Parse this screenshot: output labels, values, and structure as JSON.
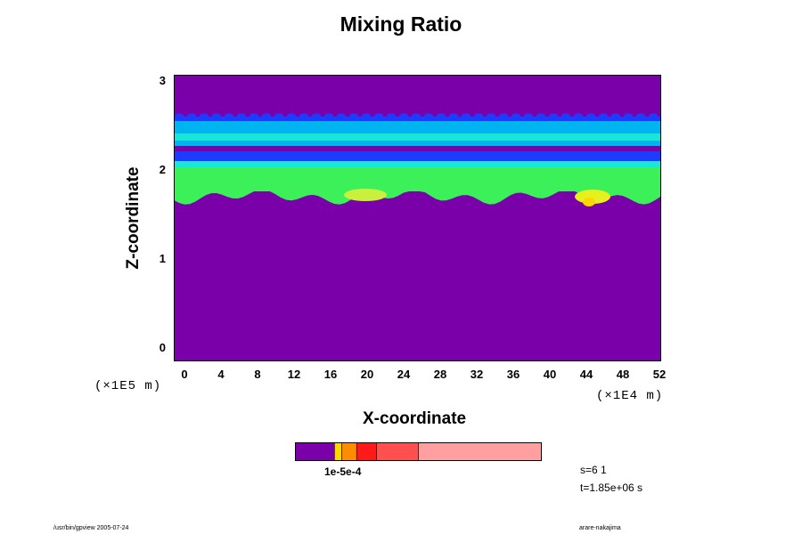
{
  "chart_data": {
    "type": "heatmap",
    "title": "Mixing Ratio",
    "xlabel": "X-coordinate",
    "ylabel": "Z-coordinate",
    "x_unit": "(×1E4 m)",
    "y_unit": "(×1E5 m)",
    "xlim": [
      0,
      52
    ],
    "ylim": [
      0,
      3
    ],
    "x_ticks": [
      "0",
      "4",
      "8",
      "12",
      "16",
      "20",
      "24",
      "28",
      "32",
      "36",
      "40",
      "44",
      "48",
      "52"
    ],
    "y_ticks": [
      "0",
      "1",
      "2",
      "3"
    ],
    "background_color": "#7a00aa",
    "bands": [
      {
        "z0": 2.56,
        "z1": 2.63,
        "color": "#1e3cff"
      },
      {
        "z0": 2.3,
        "z1": 2.58,
        "color": "#00b4f0"
      },
      {
        "z0": 2.36,
        "z1": 2.44,
        "color": "#19e6d6"
      },
      {
        "z0": 2.24,
        "z1": 2.3,
        "color": "#7a00aa"
      },
      {
        "z0": 2.13,
        "z1": 2.24,
        "color": "#1e3cff"
      },
      {
        "z0": 2.05,
        "z1": 2.13,
        "color": "#19e6d6"
      },
      {
        "z0": 1.79,
        "z1": 2.06,
        "color": "#3cf05a"
      }
    ],
    "colorbar": {
      "colors": [
        "#7a00aa",
        "#ffd700",
        "#ff8c00",
        "#ff1a1a",
        "#ff4f4f",
        "#ff9f9f"
      ],
      "boundaries": [
        0,
        0.16,
        0.19,
        0.25,
        0.33,
        0.5,
        1.0
      ],
      "tick_label": "1e-5e-4"
    }
  },
  "info": {
    "step": "s=6 1",
    "time": "t=1.85e+06 s"
  },
  "footer": {
    "left": "/usr/bin/gpview 2005-07-24",
    "right": "arare-nakajima"
  }
}
